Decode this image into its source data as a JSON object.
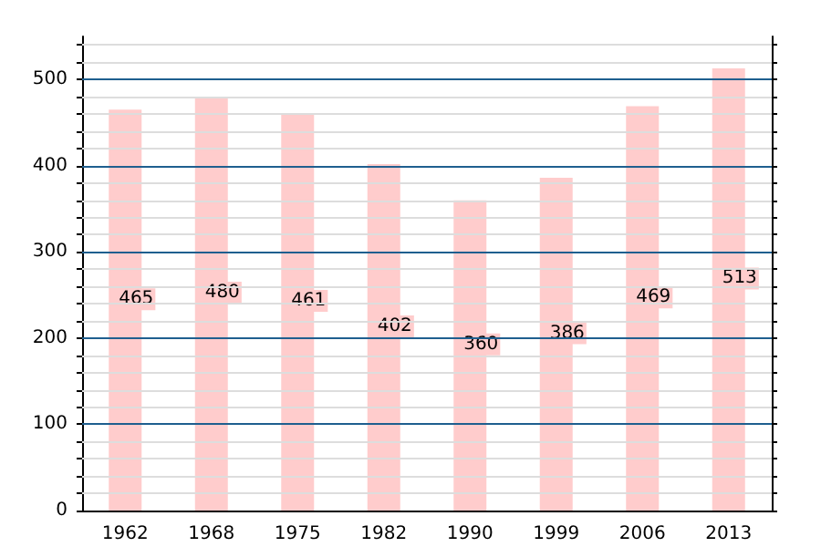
{
  "chart_data": {
    "type": "bar",
    "categories": [
      "1962",
      "1968",
      "1975",
      "1982",
      "1990",
      "1999",
      "2006",
      "2013"
    ],
    "values": [
      465,
      480,
      461,
      402,
      360,
      386,
      469,
      513
    ],
    "color": "#ffcccc",
    "data_labels": true,
    "grid": "y",
    "ylim": [
      0,
      550
    ],
    "yticks": [
      0,
      {
        "value": 20,
        "label": null
      },
      {
        "value": 40,
        "label": null
      },
      {
        "value": 60,
        "label": null
      },
      {
        "value": 80,
        "label": null
      },
      100,
      {
        "value": 120,
        "label": null
      },
      {
        "value": 140,
        "label": null
      },
      {
        "value": 160,
        "label": null
      },
      {
        "value": 180,
        "label": null
      },
      200,
      {
        "value": 220,
        "label": null
      },
      {
        "value": 240,
        "label": null
      },
      {
        "value": 260,
        "label": null
      },
      {
        "value": 280,
        "label": null
      },
      300,
      {
        "value": 320,
        "label": null
      },
      {
        "value": 340,
        "label": null
      },
      {
        "value": 360,
        "label": null
      },
      {
        "value": 380,
        "label": null
      },
      400,
      {
        "value": 420,
        "label": null
      },
      {
        "value": 440,
        "label": null
      },
      {
        "value": 460,
        "label": null
      },
      {
        "value": 480,
        "label": null
      },
      500,
      {
        "value": 520,
        "label": null
      },
      {
        "value": 540,
        "label": null
      }
    ]
  }
}
